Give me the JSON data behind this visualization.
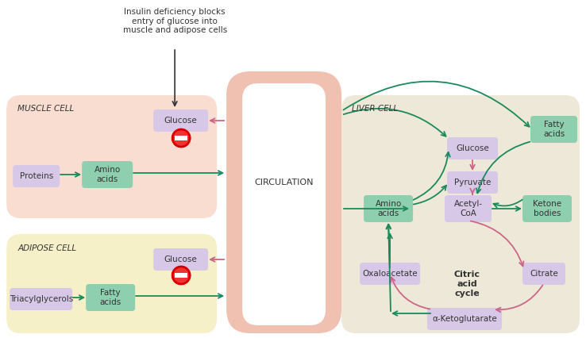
{
  "bg_color": "#f5f5f0",
  "muscle_cell_bg": "#f8ddd0",
  "adipose_cell_bg": "#f5f0c8",
  "liver_cell_bg": "#ede8d8",
  "circulation_bg": "#f0c0b0",
  "box_green": "#8ecfb0",
  "box_purple": "#d8c8e8",
  "text_dark": "#333333",
  "arrow_green": "#1a8a5a",
  "arrow_pink": "#cc6688",
  "title_annotation": "Insulin deficiency blocks\nentry of glucose into\nmuscle and adipose cells",
  "circulation_label": "CIRCULATION",
  "muscle_label": "MUSCLE CELL",
  "adipose_label": "ADIPOSE CELL",
  "liver_label": "LIVER CELL"
}
